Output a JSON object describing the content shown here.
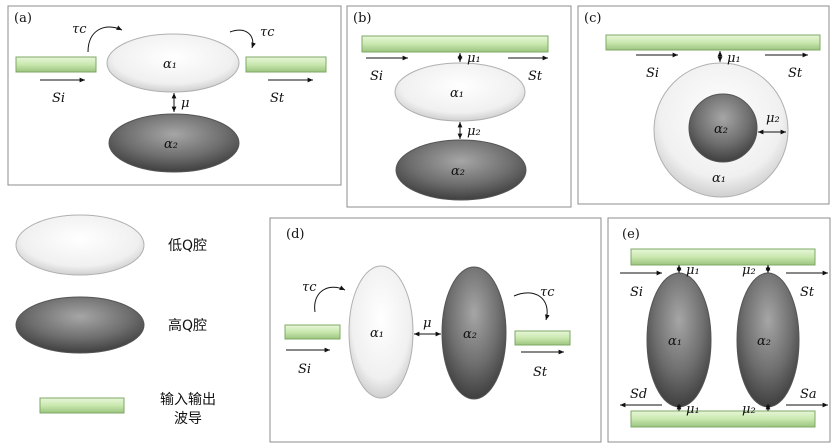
{
  "panels": {
    "a": {
      "label": "(a)"
    },
    "b": {
      "label": "(b)"
    },
    "c": {
      "label": "(c)"
    },
    "d": {
      "label": "(d)"
    },
    "e": {
      "label": "(e)"
    }
  },
  "symbols": {
    "alpha1": "α₁",
    "alpha2": "α₂",
    "mu": "μ",
    "mu1": "μ₁",
    "mu2": "μ₂",
    "tau_c": "τc",
    "s_in": "Si",
    "s_out": "St",
    "s_d": "Sd",
    "s_a": "Sa"
  },
  "legend": {
    "low_q": "低Q腔",
    "high_q": "高Q腔",
    "waveguide_line1": "输入输出",
    "waveguide_line2": "波导"
  },
  "colors": {
    "waveguide": "#c9e8ae",
    "low_q_cavity": "#f2f2f2",
    "high_q_cavity": "#707070",
    "panel_border": "#8c8c8c"
  }
}
